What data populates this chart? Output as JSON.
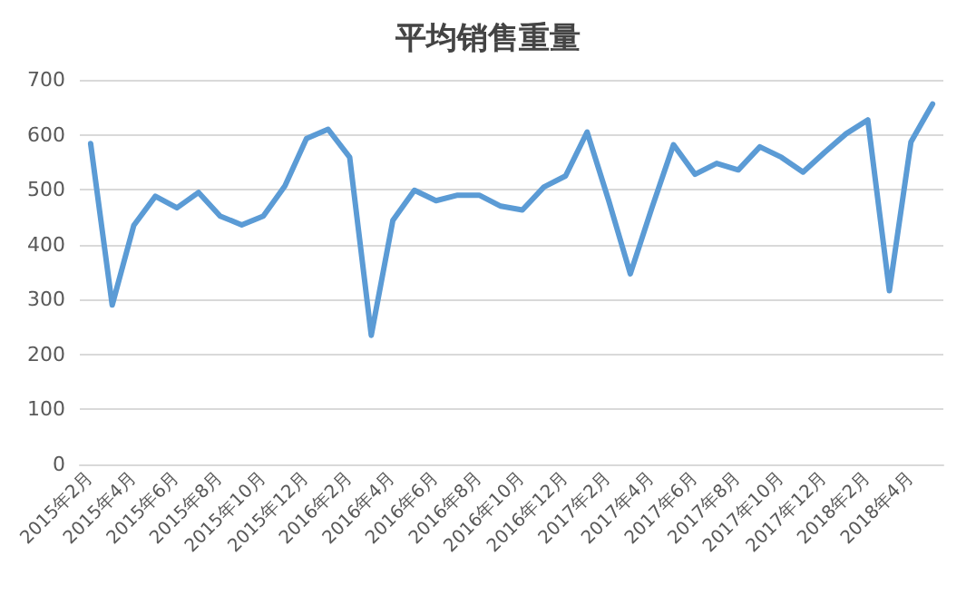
{
  "chart_data": {
    "type": "line",
    "title": "平均销售重量",
    "categories": [
      "2015年2月",
      null,
      "2015年4月",
      null,
      "2015年6月",
      null,
      "2015年8月",
      null,
      "2015年10月",
      null,
      "2015年12月",
      null,
      "2016年2月",
      null,
      "2016年4月",
      null,
      "2016年6月",
      null,
      "2016年8月",
      null,
      "2016年10月",
      null,
      "2016年12月",
      null,
      "2017年2月",
      null,
      "2017年4月",
      null,
      "2017年6月",
      null,
      "2017年8月",
      null,
      "2017年10月",
      null,
      "2017年12月",
      null,
      "2018年2月",
      null,
      "2018年4月",
      null
    ],
    "series": [
      {
        "color": "#5b9bd5",
        "values": [
          584,
          290,
          435,
          488,
          467,
          495,
          452,
          436,
          452,
          507,
          593,
          610,
          559,
          235,
          444,
          499,
          480,
          490,
          490,
          470,
          463,
          505,
          525,
          605,
          480,
          347,
          467,
          582,
          528,
          548,
          536,
          578,
          559,
          532,
          568,
          602,
          627,
          316,
          587,
          656
        ]
      }
    ],
    "ylim": [
      0,
      700
    ],
    "yticks": [
      0,
      100,
      200,
      300,
      400,
      500,
      600,
      700
    ],
    "grid": "y",
    "marker": "none",
    "line_style": "solid"
  }
}
